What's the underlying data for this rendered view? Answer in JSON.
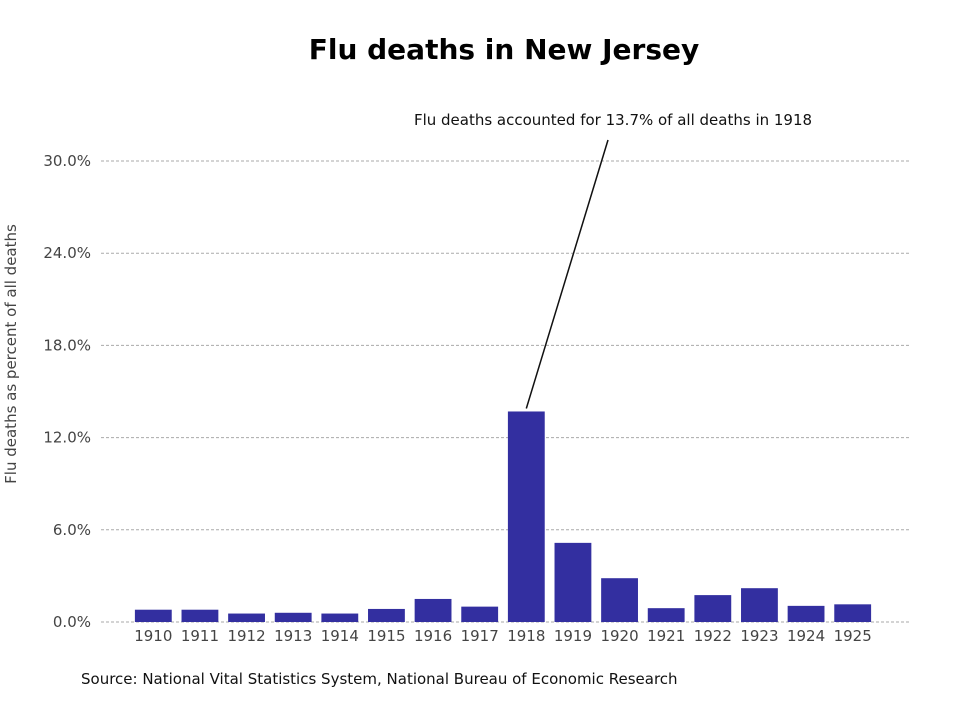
{
  "chart_data": {
    "type": "bar",
    "title": "Flu deaths in New Jersey",
    "xlabel": "",
    "ylabel": "Flu deaths as percent of all deaths",
    "categories": [
      "1910",
      "1911",
      "1912",
      "1913",
      "1914",
      "1915",
      "1916",
      "1917",
      "1918",
      "1919",
      "1920",
      "1921",
      "1922",
      "1923",
      "1924",
      "1925"
    ],
    "values": [
      0.8,
      0.8,
      0.55,
      0.6,
      0.55,
      0.85,
      1.5,
      1.0,
      13.7,
      5.15,
      2.85,
      0.9,
      1.75,
      2.2,
      1.05,
      1.15
    ],
    "ylim": [
      0,
      30
    ],
    "yticks": [
      0,
      6,
      12,
      18,
      24,
      30
    ],
    "ytick_labels": [
      "0.0%",
      "6.0%",
      "12.0%",
      "18.0%",
      "24.0%",
      "30.0%"
    ],
    "grid": true,
    "bar_color": "#332fa0",
    "annotation": {
      "text": "Flu deaths accounted for 13.7% of all deaths in 1918",
      "target_category": "1918",
      "target_value": 13.7
    },
    "source": "Source: National Vital Statistics System, National Bureau of Economic Research"
  }
}
